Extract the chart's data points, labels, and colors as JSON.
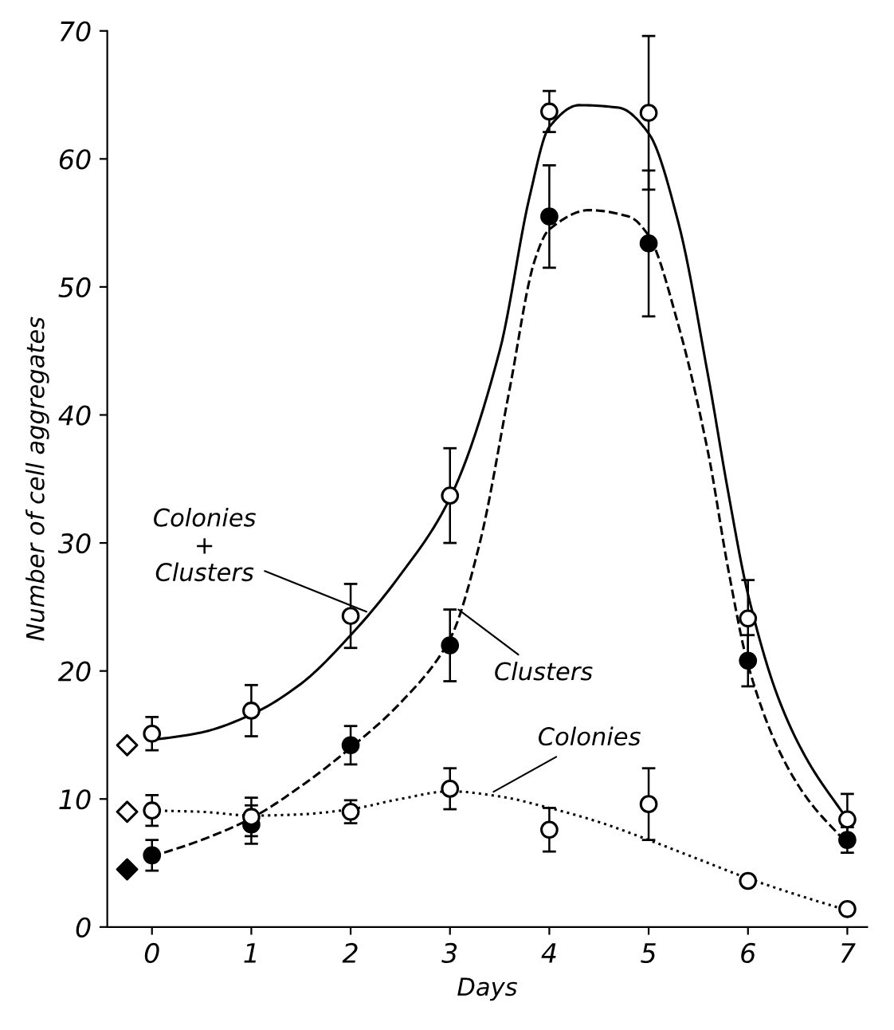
{
  "chart_data": {
    "type": "scatter",
    "xlabel": "Days",
    "ylabel": "Number of cell aggregates",
    "xlim": [
      -0.45,
      7.2
    ],
    "ylim": [
      0,
      70
    ],
    "xticks": [
      0,
      1,
      2,
      3,
      4,
      5,
      6,
      7
    ],
    "yticks": [
      0,
      10,
      20,
      30,
      40,
      50,
      60,
      70
    ],
    "grid": false,
    "legend": false,
    "series": [
      {
        "type": "line",
        "line_style": "solid",
        "color": "#000000",
        "marker": "none",
        "x": [
          0,
          0.5,
          1,
          1.5,
          2,
          2.5,
          3,
          3.5,
          3.8,
          4,
          4.3,
          4.7,
          5,
          5.3,
          5.6,
          5.8,
          6,
          6.3,
          6.6,
          7
        ],
        "values": [
          14.6,
          15.2,
          16.6,
          19,
          22.8,
          27.5,
          33.5,
          45,
          57,
          62.5,
          64.2,
          64,
          62,
          55,
          43,
          34,
          26,
          18,
          13,
          8.4
        ]
      },
      {
        "type": "line",
        "line_style": "dashed",
        "color": "#000000",
        "marker": "none",
        "x": [
          0,
          0.5,
          1,
          1.5,
          2,
          2.5,
          3,
          3.3,
          3.6,
          3.85,
          4,
          4.4,
          4.8,
          5,
          5.3,
          5.6,
          5.8,
          6,
          6.3,
          6.6,
          7
        ],
        "values": [
          5.5,
          6.8,
          8.5,
          11,
          14,
          17.5,
          22.5,
          30,
          42,
          52,
          54.5,
          56,
          55.5,
          54,
          47,
          37,
          28,
          20.5,
          14,
          10,
          6.5
        ]
      },
      {
        "type": "line",
        "line_style": "dotted",
        "color": "#000000",
        "marker": "none",
        "x": [
          0,
          0.5,
          1,
          1.5,
          2,
          2.5,
          3,
          3.5,
          4,
          4.5,
          5,
          5.5,
          6,
          6.5,
          7
        ],
        "values": [
          9.1,
          9.0,
          8.7,
          8.8,
          9.2,
          10,
          10.6,
          10.2,
          9.3,
          8.2,
          6.8,
          5.3,
          3.8,
          2.5,
          1.3
        ]
      },
      {
        "marker": "circle",
        "color": "#ffffff",
        "x": [
          0,
          1,
          2,
          3,
          4,
          5,
          6,
          7
        ],
        "values": [
          15.1,
          16.9,
          24.3,
          33.7,
          63.7,
          63.6,
          24.1,
          8.4
        ],
        "errors": [
          1.3,
          2,
          2.5,
          3.7,
          1.6,
          6,
          3,
          2
        ]
      },
      {
        "marker": "circle",
        "color": "#000000",
        "x": [
          0,
          1,
          2,
          3,
          4,
          5,
          6,
          7
        ],
        "values": [
          5.6,
          8.0,
          14.2,
          22.0,
          55.5,
          53.4,
          20.8,
          6.8
        ],
        "errors": [
          1.2,
          1.5,
          1.5,
          2.8,
          4,
          5.7,
          2,
          1
        ]
      },
      {
        "marker": "circle",
        "color": "#ffffff",
        "x": [
          0,
          1,
          2,
          3,
          4,
          5,
          6,
          7
        ],
        "values": [
          9.1,
          8.6,
          9.0,
          10.8,
          7.6,
          9.6,
          3.6,
          1.4
        ],
        "errors": [
          1.2,
          1.5,
          0.9,
          1.6,
          1.7,
          2.8,
          null,
          null
        ]
      },
      {
        "marker": "diamond",
        "color": "#ffffff",
        "x": [
          -0.25,
          -0.25
        ],
        "values": [
          14.2,
          9.0
        ]
      },
      {
        "marker": "diamond",
        "color": "#000000",
        "x": [
          -0.25
        ],
        "values": [
          4.5
        ]
      }
    ],
    "annotations": [
      {
        "text": "Colonies\n+\nClusters",
        "x": 2.2,
        "y": 24.5
      },
      {
        "text": "Clusters",
        "x": 3.05,
        "y": 25
      },
      {
        "text": "Colonies",
        "x": 3.4,
        "y": 10.4
      }
    ]
  }
}
